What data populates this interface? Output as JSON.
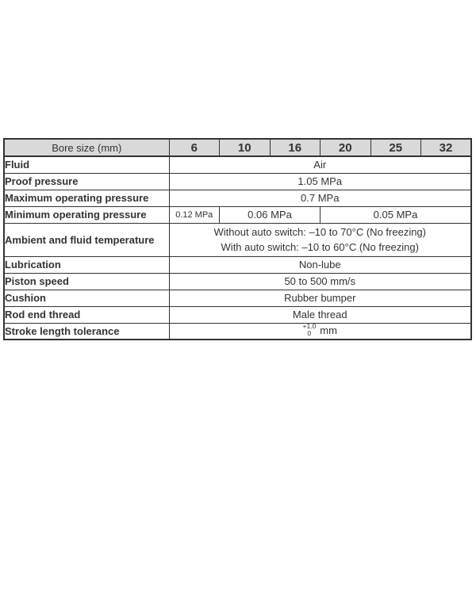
{
  "colors": {
    "header_background": "#d9d9d9",
    "table_border": "#333333",
    "text": "#333333",
    "page_background": "#ffffff"
  },
  "table": {
    "header": {
      "label": "Bore size (mm)",
      "bores": [
        "6",
        "10",
        "16",
        "20",
        "25",
        "32"
      ]
    },
    "rows": {
      "fluid": {
        "label": "Fluid",
        "value": "Air"
      },
      "proof_pressure": {
        "label": "Proof pressure",
        "value": "1.05 MPa"
      },
      "max_operating_pressure": {
        "label": "Maximum operating pressure",
        "value": "0.7 MPa"
      },
      "min_operating_pressure": {
        "label": "Minimum operating pressure",
        "cells": [
          {
            "value": "0.12 MPa",
            "colspan": "1"
          },
          {
            "value": "0.06 MPa",
            "colspan": "2"
          },
          {
            "value": "0.05 MPa",
            "colspan": "3"
          }
        ]
      },
      "temperature": {
        "label": "Ambient and fluid temperature",
        "line1": "Without auto switch: –10 to 70°C (No freezing)",
        "line2": "With auto switch: –10 to 60°C (No freezing)"
      },
      "lubrication": {
        "label": "Lubrication",
        "value": "Non-lube"
      },
      "piston_speed": {
        "label": "Piston speed",
        "value": "50 to 500 mm/s"
      },
      "cushion": {
        "label": "Cushion",
        "value": "Rubber bumper"
      },
      "rod_end_thread": {
        "label": "Rod end thread",
        "value": "Male thread"
      },
      "stroke_length_tolerance": {
        "label": "Stroke length tolerance",
        "tolerance_upper": "+1.0",
        "tolerance_lower": "0",
        "unit": "mm"
      }
    }
  }
}
